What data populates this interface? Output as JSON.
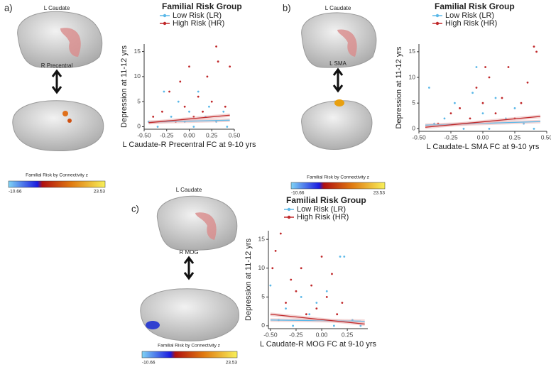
{
  "chart_data": [
    {
      "type": "scatter",
      "title": "Familial Risk Group",
      "x_label": "L Caudate-R Precentral FC at 9-10 yrs",
      "y_label": "Depression at 11-12 yrs",
      "xlim": [
        -0.5,
        0.5
      ],
      "ylim": [
        -0.5,
        16.5
      ],
      "xticks": [
        {
          "value": -0.5,
          "label": "-0.50"
        },
        {
          "value": -0.25,
          "label": "-0.25"
        },
        {
          "value": 0,
          "label": "0.00"
        },
        {
          "value": 0.25,
          "label": "0.25"
        },
        {
          "value": 0.5,
          "label": "0.50"
        }
      ],
      "yticks": [
        0,
        5,
        10,
        15
      ],
      "series": [
        {
          "name": "Low Risk (LR)",
          "color": "#5bb8e8",
          "x": [
            -0.45,
            -0.35,
            -0.28,
            -0.2,
            -0.12,
            -0.05,
            0,
            0.05,
            0.1,
            0.18,
            0.22,
            0.3,
            0.38,
            0.42
          ],
          "values": [
            1,
            0,
            7,
            2,
            5,
            1,
            3,
            0,
            7,
            2,
            4,
            1,
            3,
            0
          ],
          "fit_x": [
            -0.45,
            0.45
          ],
          "fit_values": [
            0.9,
            1.3
          ]
        },
        {
          "name": "High Risk (HR)",
          "color": "#c0282a",
          "x": [
            -0.4,
            -0.3,
            -0.22,
            -0.15,
            -0.1,
            -0.05,
            0,
            0.05,
            0.1,
            0.15,
            0.2,
            0.25,
            0.3,
            0.32,
            0.4,
            0.45
          ],
          "values": [
            2,
            3,
            7,
            1,
            9,
            4,
            12,
            2,
            6,
            3,
            10,
            5,
            16,
            13,
            4,
            12
          ],
          "fit_x": [
            -0.45,
            0.45
          ],
          "fit_values": [
            0.8,
            2.3
          ]
        }
      ]
    },
    {
      "type": "scatter",
      "title": "Familial Risk Group",
      "x_label": "L Caudate-L SMA FC at 9-10 yrs",
      "y_label": "Depression at 11-12 yrs",
      "xlim": [
        -0.5,
        0.5
      ],
      "ylim": [
        -0.5,
        16.5
      ],
      "xticks": [
        {
          "value": -0.5,
          "label": "-0.50"
        },
        {
          "value": -0.25,
          "label": "-0.25"
        },
        {
          "value": 0,
          "label": "0.00"
        },
        {
          "value": 0.25,
          "label": "0.25"
        },
        {
          "value": 0.5,
          "label": "0.50"
        }
      ],
      "yticks": [
        0,
        5,
        10,
        15
      ],
      "series": [
        {
          "name": "Low Risk (LR)",
          "color": "#5bb8e8",
          "x": [
            -0.42,
            -0.38,
            -0.3,
            -0.22,
            -0.15,
            -0.08,
            -0.05,
            0,
            0.05,
            0.1,
            0.18,
            0.25,
            0.32,
            0.4
          ],
          "values": [
            8,
            1,
            2,
            5,
            0,
            7,
            12,
            3,
            0,
            6,
            2,
            4,
            1,
            0
          ],
          "fit_x": [
            -0.45,
            0.45
          ],
          "fit_values": [
            0.7,
            1.4
          ]
        },
        {
          "name": "High Risk (HR)",
          "color": "#c0282a",
          "x": [
            -0.35,
            -0.25,
            -0.18,
            -0.1,
            -0.05,
            0,
            0.02,
            0.05,
            0.1,
            0.15,
            0.2,
            0.25,
            0.3,
            0.35,
            0.4,
            0.42
          ],
          "values": [
            1,
            3,
            4,
            2,
            8,
            5,
            12,
            10,
            3,
            6,
            12,
            2,
            5,
            9,
            16,
            15
          ],
          "fit_x": [
            -0.45,
            0.45
          ],
          "fit_values": [
            0.3,
            2.4
          ]
        }
      ]
    },
    {
      "type": "scatter",
      "title": "Familial Risk Group",
      "x_label": "L Caudate-R MOG FC at 9-10 yrs",
      "y_label": "Depression at 11-12 yrs",
      "xlim": [
        -0.52,
        0.45
      ],
      "ylim": [
        -0.5,
        16.5
      ],
      "xticks": [
        {
          "value": -0.5,
          "label": "-0.50"
        },
        {
          "value": -0.25,
          "label": "-0.25"
        },
        {
          "value": 0,
          "label": "0.00"
        },
        {
          "value": 0.25,
          "label": "0.25"
        }
      ],
      "yticks": [
        0,
        5,
        10,
        15
      ],
      "series": [
        {
          "name": "Low Risk (LR)",
          "color": "#5bb8e8",
          "x": [
            -0.5,
            -0.42,
            -0.35,
            -0.28,
            -0.2,
            -0.12,
            -0.05,
            0,
            0.05,
            0.12,
            0.18,
            0.22,
            0.3,
            0.38
          ],
          "values": [
            7,
            1,
            3,
            0,
            5,
            2,
            4,
            1,
            6,
            0,
            12,
            12,
            1,
            0
          ],
          "fit_x": [
            -0.5,
            0.42
          ],
          "fit_values": [
            1,
            0.8
          ]
        },
        {
          "name": "High Risk (HR)",
          "color": "#c0282a",
          "x": [
            -0.48,
            -0.45,
            -0.4,
            -0.35,
            -0.3,
            -0.25,
            -0.2,
            -0.15,
            -0.1,
            -0.05,
            0,
            0.05,
            0.1,
            0.15,
            0.2
          ],
          "values": [
            10,
            13,
            16,
            4,
            8,
            6,
            10,
            2,
            7,
            3,
            12,
            5,
            9,
            2,
            4
          ],
          "fit_x": [
            -0.5,
            0.42
          ],
          "fit_values": [
            2,
            0.3
          ]
        }
      ]
    }
  ],
  "panels": [
    {
      "label": "a)",
      "seed": "L Caudate",
      "target": "R Precentral",
      "colorbar_title": "Familial Risk by Connectivity z",
      "colorbar_min": -10.66,
      "colorbar_max": 23.53
    },
    {
      "label": "b)",
      "seed": "L Caudate",
      "target": "L SMA",
      "colorbar_title": "Familial Risk by Connectivity z",
      "colorbar_min": -10.66,
      "colorbar_max": 23.53
    },
    {
      "label": "c)",
      "seed": "L Caudate",
      "target": "R MOG",
      "colorbar_title": "Familial Risk by Connectivity z",
      "colorbar_min": -10.66,
      "colorbar_max": 23.53
    }
  ]
}
